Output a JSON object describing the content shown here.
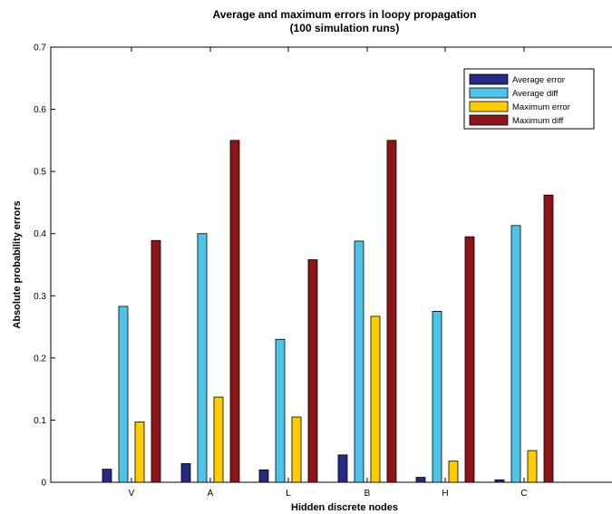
{
  "chart_data": {
    "type": "bar",
    "title": "Average and maximum errors in loopy propagation",
    "subtitle": "(100 simulation runs)",
    "xlabel": "Hidden discrete nodes",
    "ylabel": "Absolute probability errors",
    "ylim": [
      0,
      0.7
    ],
    "yticks": [
      "0",
      "0.1",
      "0.2",
      "0.3",
      "0.4",
      "0.5",
      "0.6",
      "0.7"
    ],
    "grid": false,
    "legend_position": "top-right",
    "categories": [
      "V",
      "A",
      "L",
      "B",
      "H",
      "C"
    ],
    "series": [
      {
        "name": "Average error",
        "color": "#262a80",
        "values": [
          0.021,
          0.03,
          0.02,
          0.044,
          0.008,
          0.004
        ]
      },
      {
        "name": "Average diff",
        "color": "#4ec3e8",
        "values": [
          0.283,
          0.4,
          0.23,
          0.388,
          0.275,
          0.413
        ]
      },
      {
        "name": "Maximum error",
        "color": "#ffcc00",
        "values": [
          0.097,
          0.137,
          0.105,
          0.267,
          0.034,
          0.051
        ]
      },
      {
        "name": "Maximum diff",
        "color": "#8b1517",
        "values": [
          0.389,
          0.55,
          0.358,
          0.55,
          0.395,
          0.462
        ]
      }
    ]
  }
}
